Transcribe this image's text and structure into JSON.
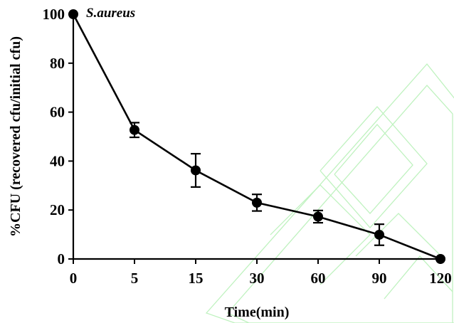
{
  "chart_data": {
    "type": "line",
    "title": "",
    "annotation": "S.aureus",
    "xlabel": "Time(min)",
    "ylabel": "%CFU (recovered cfu/initial cfu)",
    "categories": [
      "0",
      "5",
      "15",
      "30",
      "60",
      "90",
      "120"
    ],
    "x_scale": "categorical",
    "ylim": [
      0,
      100
    ],
    "yticks": [
      "0",
      "20",
      "40",
      "60",
      "80",
      "100"
    ],
    "grid": false,
    "legend": "none",
    "series": [
      {
        "values": [
          100,
          52.7,
          36.2,
          23,
          17.3,
          9.9,
          0
        ],
        "error": [
          0,
          3,
          6.8,
          3.4,
          2.5,
          4.3,
          0
        ],
        "color": "#000000"
      }
    ]
  }
}
